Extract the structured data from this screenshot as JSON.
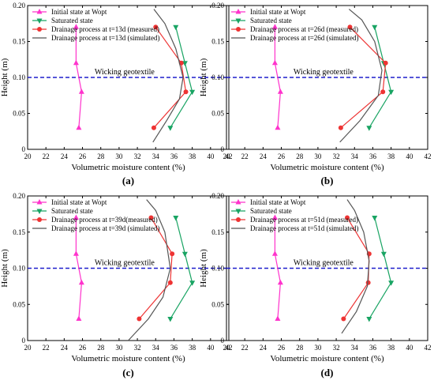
{
  "colors": {
    "initial": "#ff33cc",
    "saturated": "#19a463",
    "measured": "#ee3333",
    "simulated": "#555555",
    "geotextile": "#1f1fcc",
    "axis": "#000000"
  },
  "chart_data": [
    {
      "type": "line",
      "panel_label": "(a)",
      "xlabel": "Volumetric moisture content (%)",
      "ylabel": "Height (m)",
      "xlim": [
        20,
        42
      ],
      "ylim": [
        0,
        0.2
      ],
      "xticks": [
        "20",
        "22",
        "24",
        "26",
        "28",
        "30",
        "32",
        "34",
        "36",
        "38",
        "40",
        "42"
      ],
      "yticks": [
        "0",
        "0.05",
        "0.10",
        "0.15",
        "0.20"
      ],
      "annotation": "Wicking geotextile",
      "geotextile_y": 0.1,
      "grid": false,
      "legend_position": "top-left",
      "series": [
        {
          "name": "Initial state at Wopt",
          "marker": "triangle-up",
          "points": [
            [
              25.6,
              0.03
            ],
            [
              25.9,
              0.08
            ],
            [
              25.3,
              0.12
            ],
            [
              25.3,
              0.17
            ]
          ]
        },
        {
          "name": "Saturated state",
          "marker": "triangle-down",
          "points": [
            [
              35.6,
              0.03
            ],
            [
              38.0,
              0.08
            ],
            [
              37.2,
              0.12
            ],
            [
              36.2,
              0.17
            ]
          ]
        },
        {
          "name": "Drainage process at t=13d (measured)",
          "marker": "circle",
          "points": [
            [
              33.8,
              0.03
            ],
            [
              37.3,
              0.08
            ],
            [
              36.8,
              0.12
            ],
            [
              34.0,
              0.17
            ]
          ]
        },
        {
          "name": "Drainage process at t=13d (simulated)",
          "marker": "none",
          "points": [
            [
              33.7,
              0.01
            ],
            [
              35.2,
              0.04
            ],
            [
              36.6,
              0.07
            ],
            [
              37.0,
              0.1
            ],
            [
              36.2,
              0.14
            ],
            [
              35.0,
              0.175
            ],
            [
              33.8,
              0.195
            ]
          ]
        }
      ]
    },
    {
      "type": "line",
      "panel_label": "(b)",
      "xlabel": "Volumetric moisture content (%)",
      "ylabel": "Height (m)",
      "xlim": [
        20,
        42
      ],
      "ylim": [
        0,
        0.2
      ],
      "xticks": [
        "20",
        "22",
        "24",
        "26",
        "28",
        "30",
        "32",
        "34",
        "36",
        "38",
        "40",
        "42"
      ],
      "yticks": [
        "0",
        "0.05",
        "0.10",
        "0.15",
        "0.20"
      ],
      "annotation": "Wicking geotextile",
      "geotextile_y": 0.1,
      "grid": false,
      "legend_position": "top-left",
      "series": [
        {
          "name": "Initial state at Wopt",
          "marker": "triangle-up",
          "points": [
            [
              25.6,
              0.03
            ],
            [
              25.9,
              0.08
            ],
            [
              25.3,
              0.12
            ],
            [
              25.3,
              0.17
            ]
          ]
        },
        {
          "name": "Saturated state",
          "marker": "triangle-down",
          "points": [
            [
              35.6,
              0.03
            ],
            [
              38.0,
              0.08
            ],
            [
              37.2,
              0.12
            ],
            [
              36.2,
              0.17
            ]
          ]
        },
        {
          "name": "Drainage process at t=26d (measured)",
          "marker": "circle",
          "points": [
            [
              32.5,
              0.03
            ],
            [
              37.1,
              0.08
            ],
            [
              37.4,
              0.12
            ],
            [
              33.5,
              0.17
            ]
          ]
        },
        {
          "name": "Drainage process at t=26d (simulated)",
          "marker": "none",
          "points": [
            [
              32.4,
              0.01
            ],
            [
              34.6,
              0.04
            ],
            [
              36.6,
              0.075
            ],
            [
              37.0,
              0.11
            ],
            [
              36.2,
              0.15
            ],
            [
              34.8,
              0.18
            ],
            [
              33.4,
              0.195
            ]
          ]
        }
      ]
    },
    {
      "type": "line",
      "panel_label": "(c)",
      "xlabel": "Volumetric moisture content (%)",
      "ylabel": "Height (m)",
      "xlim": [
        20,
        42
      ],
      "ylim": [
        0,
        0.2
      ],
      "xticks": [
        "20",
        "22",
        "24",
        "26",
        "28",
        "30",
        "32",
        "34",
        "36",
        "38",
        "40",
        "42"
      ],
      "yticks": [
        "0",
        "0.05",
        "0.10",
        "0.15",
        "0.20"
      ],
      "annotation": "Wicking geotextile",
      "geotextile_y": 0.1,
      "grid": false,
      "legend_position": "top-left",
      "series": [
        {
          "name": "Initial state at Wopt",
          "marker": "triangle-up",
          "points": [
            [
              25.6,
              0.03
            ],
            [
              25.9,
              0.08
            ],
            [
              25.3,
              0.12
            ],
            [
              25.3,
              0.17
            ]
          ]
        },
        {
          "name": "Saturated state",
          "marker": "triangle-down",
          "points": [
            [
              35.6,
              0.03
            ],
            [
              38.0,
              0.08
            ],
            [
              37.2,
              0.12
            ],
            [
              36.2,
              0.17
            ]
          ]
        },
        {
          "name": "Drainage process at t=39d(measured)",
          "marker": "circle",
          "points": [
            [
              32.2,
              0.03
            ],
            [
              35.6,
              0.08
            ],
            [
              35.8,
              0.12
            ],
            [
              33.5,
              0.17
            ]
          ]
        },
        {
          "name": "Drainage process at t=39d (simulated)",
          "marker": "none",
          "points": [
            [
              31.0,
              0.0
            ],
            [
              33.2,
              0.03
            ],
            [
              34.8,
              0.06
            ],
            [
              35.6,
              0.1
            ],
            [
              35.0,
              0.15
            ],
            [
              34.0,
              0.18
            ],
            [
              33.0,
              0.195
            ]
          ]
        }
      ]
    },
    {
      "type": "line",
      "panel_label": "(d)",
      "xlabel": "Volumetric moisture content (%)",
      "ylabel": "Height (m)",
      "xlim": [
        20,
        42
      ],
      "ylim": [
        0,
        0.2
      ],
      "xticks": [
        "20",
        "22",
        "24",
        "26",
        "28",
        "30",
        "32",
        "34",
        "36",
        "38",
        "40",
        "42"
      ],
      "yticks": [
        "0",
        "0.05",
        "0.10",
        "0.15",
        "0.20"
      ],
      "annotation": "Wicking geotextile",
      "geotextile_y": 0.1,
      "grid": false,
      "legend_position": "top-left",
      "series": [
        {
          "name": "Initial state at Wopt",
          "marker": "triangle-up",
          "points": [
            [
              25.6,
              0.03
            ],
            [
              25.9,
              0.08
            ],
            [
              25.3,
              0.12
            ],
            [
              25.3,
              0.17
            ]
          ]
        },
        {
          "name": "Saturated state",
          "marker": "triangle-down",
          "points": [
            [
              35.6,
              0.03
            ],
            [
              38.0,
              0.08
            ],
            [
              37.2,
              0.12
            ],
            [
              36.2,
              0.17
            ]
          ]
        },
        {
          "name": "Drainage process at t=51d (measured)",
          "marker": "circle",
          "points": [
            [
              32.8,
              0.03
            ],
            [
              35.5,
              0.08
            ],
            [
              35.6,
              0.12
            ],
            [
              33.2,
              0.17
            ]
          ]
        },
        {
          "name": "Drainage process at t=51d (simulated)",
          "marker": "none",
          "points": [
            [
              32.6,
              0.01
            ],
            [
              34.2,
              0.04
            ],
            [
              35.4,
              0.075
            ],
            [
              35.6,
              0.11
            ],
            [
              35.0,
              0.15
            ],
            [
              34.0,
              0.18
            ],
            [
              33.2,
              0.195
            ]
          ]
        }
      ]
    }
  ]
}
